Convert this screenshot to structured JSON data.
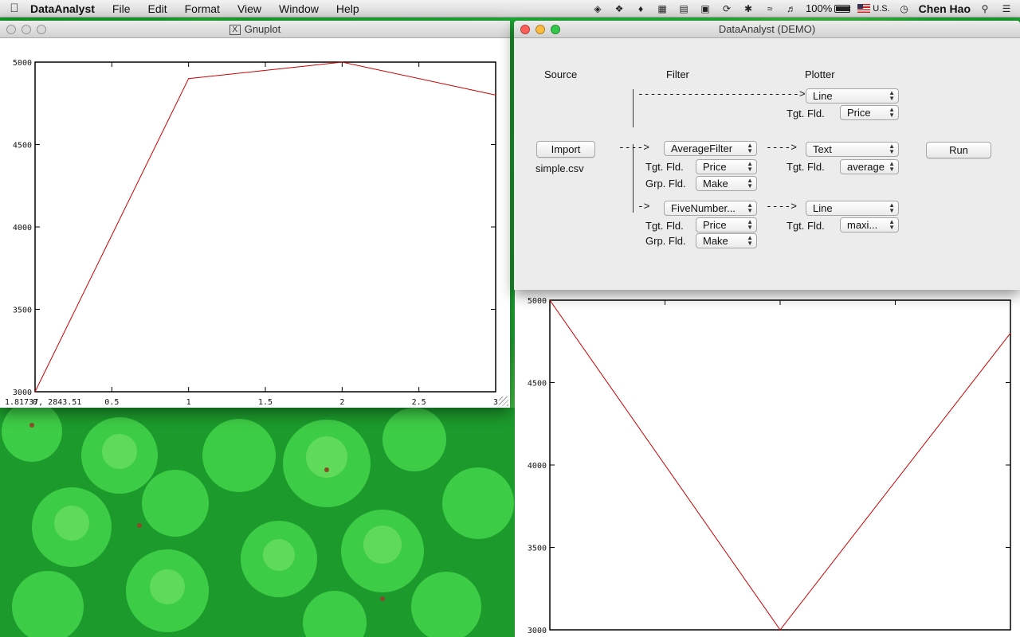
{
  "menubar": {
    "app_name": "DataAnalyst",
    "menus": [
      "File",
      "Edit",
      "Format",
      "View",
      "Window",
      "Help"
    ],
    "battery": "100%",
    "input_source": "U.S.",
    "user": "Chen Hao"
  },
  "gnuplot_window": {
    "title": "Gnuplot",
    "coordinates": "1.81737,  2843.51"
  },
  "chart_data": [
    {
      "type": "line",
      "x": [
        0,
        1,
        2,
        3
      ],
      "values": [
        3000,
        4900,
        5000,
        4800
      ],
      "xlim": [
        0,
        3
      ],
      "ylim": [
        3000,
        5000
      ],
      "x_ticks": [
        "0",
        "0.5",
        "1",
        "1.5",
        "2",
        "2.5",
        "3"
      ],
      "y_ticks": [
        "3000",
        "3500",
        "4000",
        "4500",
        "5000"
      ],
      "line_color": "#cc0000",
      "title": "",
      "xlabel": "",
      "ylabel": ""
    },
    {
      "type": "line",
      "x": [
        0,
        1,
        2
      ],
      "values": [
        5000,
        3000,
        4800
      ],
      "xlim": [
        0,
        2
      ],
      "ylim": [
        3000,
        5000
      ],
      "x_ticks": [],
      "y_ticks": [
        "3000",
        "3500",
        "4000",
        "4500",
        "5000"
      ],
      "line_color": "#cc0000",
      "title": "",
      "xlabel": "",
      "ylabel": ""
    }
  ],
  "dataanalyst_window": {
    "title": "DataAnalyst (DEMO)",
    "headers": {
      "source": "Source",
      "filter": "Filter",
      "plotter": "Plotter"
    },
    "import_button": "Import",
    "run_button": "Run",
    "source_file": "simple.csv",
    "tgt_label": "Tgt. Fld.",
    "grp_label": "Grp. Fld.",
    "connector_top": "-------------------------->",
    "connector_source": "---->",
    "connector_filter1": "---->",
    "connector_branch": "->",
    "connector_filter2": "---->",
    "plotter1": {
      "type": "Line",
      "target": "Price"
    },
    "filter1": {
      "type": "AverageFilter",
      "target": "Price",
      "group": "Make"
    },
    "plotter2": {
      "type": "Text",
      "target": "average"
    },
    "filter2": {
      "type": "FiveNumber...",
      "target": "Price",
      "group": "Make"
    },
    "plotter3": {
      "type": "Line",
      "target": "maxi..."
    }
  }
}
